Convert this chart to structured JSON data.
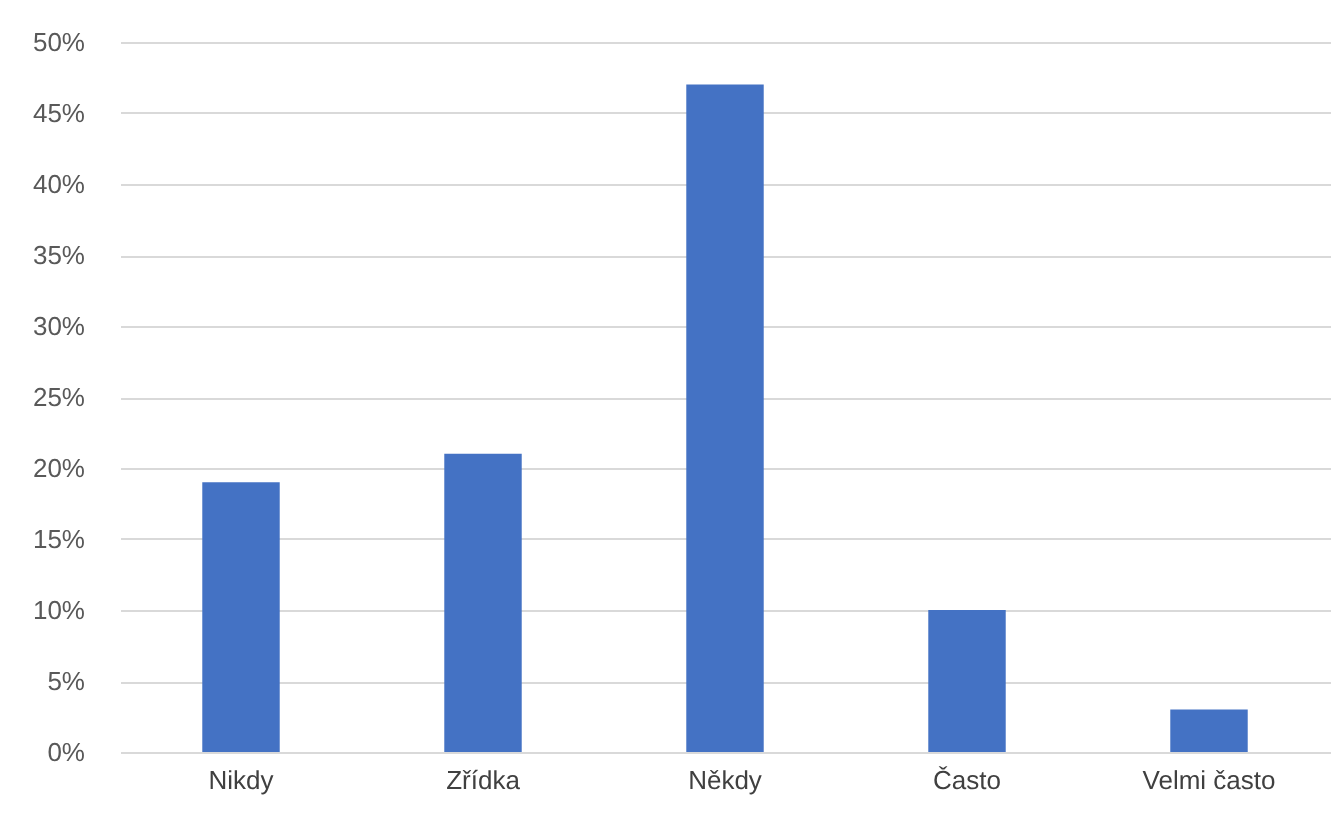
{
  "chart_data": {
    "type": "bar",
    "categories": [
      "Nikdy",
      "Zřídka",
      "Někdy",
      "Často",
      "Velmi často"
    ],
    "values": [
      19,
      21,
      47,
      10,
      3
    ],
    "color": "#4472c4",
    "ylim": [
      0,
      50
    ],
    "yticks": [
      {
        "value": 0,
        "label": "0%"
      },
      {
        "value": 5,
        "label": "5%"
      },
      {
        "value": 10,
        "label": "10%"
      },
      {
        "value": 15,
        "label": "15%"
      },
      {
        "value": 20,
        "label": "20%"
      },
      {
        "value": 25,
        "label": "25%"
      },
      {
        "value": 30,
        "label": "30%"
      },
      {
        "value": 35,
        "label": "35%"
      },
      {
        "value": 40,
        "label": "40%"
      },
      {
        "value": 45,
        "label": "45%"
      },
      {
        "value": 50,
        "label": "50%"
      }
    ],
    "grid": "y"
  }
}
